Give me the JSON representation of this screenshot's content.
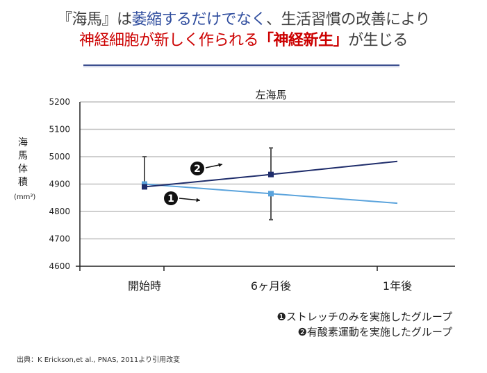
{
  "header": {
    "line1_part1": "『海馬』は",
    "line1_highlight": "萎縮するだけでなく",
    "line1_part2": "、生活習慣の改善により",
    "line2_part1": "神経細胞が新しく作られる",
    "line2_bold": "「神経新生」",
    "line2_part2": "が生じる"
  },
  "y_axis_label_chars": [
    "海",
    "馬",
    "体",
    "積"
  ],
  "y_axis_unit": "(mm³)",
  "legend": [
    {
      "marker": "❶",
      "text": "ストレッチのみを実施したグループ"
    },
    {
      "marker": "❷",
      "text": "有酸素運動を実施したグループ"
    }
  ],
  "source": "出典：K Erickson,et al., PNAS, 2011より引用改変",
  "colors": {
    "aerobic": "#1f2d6b",
    "stretch": "#5aa3dc",
    "errorbar": "#555555",
    "grid": "#bfbfbf",
    "highlight": "#2f4d9e",
    "red": "#cc0000"
  },
  "chart_data": {
    "type": "line",
    "title": "左海馬",
    "categories": [
      "開始時",
      "6ヶ月後",
      "1年後"
    ],
    "ylim": [
      4600,
      5200
    ],
    "yticks": [
      4600,
      4700,
      4800,
      4900,
      5000,
      5100,
      5200
    ],
    "grid": true,
    "series": [
      {
        "name": "❶",
        "values": [
          4900,
          4865,
          4830
        ],
        "marker_points": [
          {
            "x": "開始時",
            "y": 4900
          },
          {
            "x": "6ヶ月後",
            "y": 4865
          }
        ],
        "error_bar": {
          "x": "6ヶ月後",
          "low": 4770,
          "high": 4865
        }
      },
      {
        "name": "❷",
        "values": [
          4890,
          4935,
          4983
        ],
        "marker_points": [
          {
            "x": "開始時",
            "y": 4890
          },
          {
            "x": "6ヶ月後",
            "y": 4935
          }
        ],
        "error_bar": {
          "x": "6ヶ月後",
          "low": 4935,
          "high": 5032
        }
      }
    ],
    "start_error_bar": {
      "x": "開始時",
      "low": 4890,
      "high": 5000
    }
  }
}
